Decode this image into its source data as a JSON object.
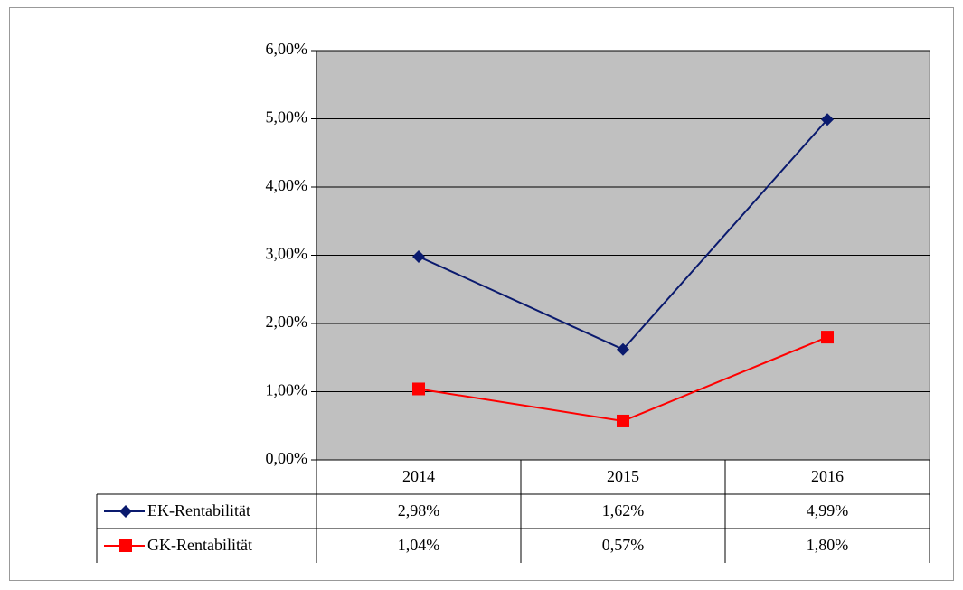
{
  "chart_data": {
    "type": "line",
    "categories": [
      "2014",
      "2015",
      "2016"
    ],
    "series": [
      {
        "name": "EK-Rentabilität",
        "color": "#0a1a6e",
        "marker": "diamond",
        "values": [
          2.98,
          1.62,
          4.99
        ],
        "value_labels": [
          "2,98%",
          "1,62%",
          "4,99%"
        ]
      },
      {
        "name": "GK-Rentabilität",
        "color": "#ff0000",
        "marker": "square",
        "values": [
          1.04,
          0.57,
          1.8
        ],
        "value_labels": [
          "1,04%",
          "0,57%",
          "1,80%"
        ]
      }
    ],
    "ylim": [
      0,
      6
    ],
    "yticks": [
      {
        "value": 0,
        "label": "0,00%"
      },
      {
        "value": 1,
        "label": "1,00%"
      },
      {
        "value": 2,
        "label": "2,00%"
      },
      {
        "value": 3,
        "label": "3,00%"
      },
      {
        "value": 4,
        "label": "4,00%"
      },
      {
        "value": 5,
        "label": "5,00%"
      },
      {
        "value": 6,
        "label": "6,00%"
      }
    ],
    "grid": true,
    "plot_background": "#c0c0c0"
  }
}
